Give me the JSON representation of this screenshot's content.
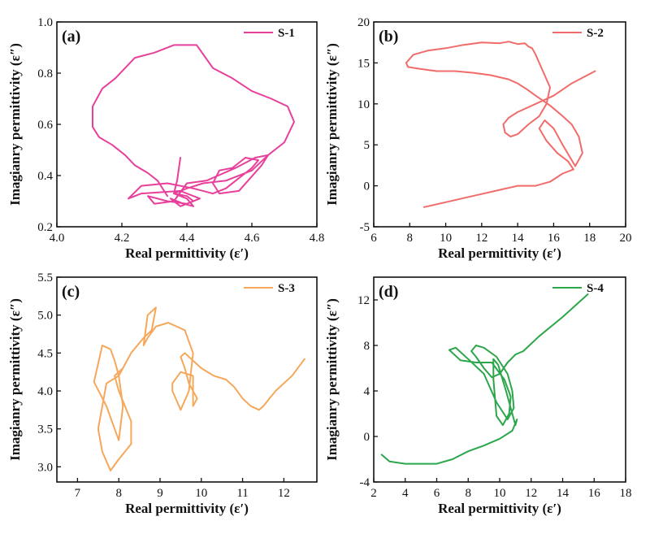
{
  "chart_data": [
    {
      "type": "line",
      "panel_label": "(a)",
      "xlabel": "Real permittivity (ε′)",
      "ylabel": "Imagianry permittivity (ε″)",
      "xlim": [
        4.0,
        4.8
      ],
      "ylim": [
        0.2,
        1.0
      ],
      "xticks": [
        4.0,
        4.2,
        4.4,
        4.6,
        4.8
      ],
      "yticks": [
        0.2,
        0.4,
        0.6,
        0.8,
        1.0
      ],
      "xtick_labels": [
        "4.0",
        "4.2",
        "4.4",
        "4.6",
        "4.8"
      ],
      "ytick_labels": [
        "0.2",
        "0.4",
        "0.6",
        "0.8",
        "1.0"
      ],
      "legend_position": "top-right",
      "grid": false,
      "series": [
        {
          "name": "S-1",
          "color": "#e8409a",
          "x": [
            4.38,
            4.37,
            4.36,
            4.4,
            4.42,
            4.36,
            4.3,
            4.28,
            4.34,
            4.4,
            4.44,
            4.38,
            4.26,
            4.22,
            4.26,
            4.34,
            4.42,
            4.48,
            4.52,
            4.56,
            4.6,
            4.62,
            4.58,
            4.54,
            4.5,
            4.48,
            4.5,
            4.56,
            4.63,
            4.65,
            4.61,
            4.55,
            4.46,
            4.4,
            4.36,
            4.39,
            4.35,
            4.38,
            4.42,
            4.4,
            4.36,
            4.4,
            4.45,
            4.52,
            4.6,
            4.65,
            4.7,
            4.73,
            4.71,
            4.66,
            4.6,
            4.54,
            4.48,
            4.43,
            4.36,
            4.3,
            4.24,
            4.18,
            4.14,
            4.11,
            4.11,
            4.13,
            4.17,
            4.21,
            4.24,
            4.28,
            4.31,
            4.33,
            4.34
          ],
          "y": [
            0.47,
            0.38,
            0.33,
            0.31,
            0.28,
            0.3,
            0.29,
            0.32,
            0.3,
            0.29,
            0.31,
            0.34,
            0.33,
            0.31,
            0.36,
            0.37,
            0.35,
            0.33,
            0.35,
            0.39,
            0.43,
            0.46,
            0.47,
            0.43,
            0.42,
            0.37,
            0.33,
            0.34,
            0.44,
            0.48,
            0.47,
            0.43,
            0.38,
            0.37,
            0.3,
            0.29,
            0.31,
            0.28,
            0.3,
            0.32,
            0.33,
            0.35,
            0.37,
            0.38,
            0.42,
            0.48,
            0.53,
            0.61,
            0.67,
            0.7,
            0.73,
            0.78,
            0.82,
            0.91,
            0.91,
            0.88,
            0.86,
            0.78,
            0.74,
            0.67,
            0.59,
            0.55,
            0.52,
            0.48,
            0.44,
            0.41,
            0.38,
            0.34,
            0.32
          ]
        }
      ]
    },
    {
      "type": "line",
      "panel_label": "(b)",
      "xlabel": "Real permittivity (ε′)",
      "ylabel": "Imagianry permittivity (ε″)",
      "xlim": [
        6,
        20
      ],
      "ylim": [
        -5,
        20
      ],
      "xticks": [
        6,
        8,
        10,
        12,
        14,
        16,
        18,
        20
      ],
      "yticks": [
        -5,
        0,
        5,
        10,
        15,
        20
      ],
      "xtick_labels": [
        "6",
        "8",
        "10",
        "12",
        "14",
        "16",
        "18",
        "20"
      ],
      "ytick_labels": [
        "-5",
        "0",
        "5",
        "10",
        "15",
        "20"
      ],
      "legend_position": "top-right",
      "grid": false,
      "series": [
        {
          "name": "S-2",
          "color": "#f26b6b",
          "x": [
            18.3,
            17.0,
            16.0,
            15.0,
            14.0,
            13.5,
            13.2,
            13.3,
            13.6,
            14.0,
            14.6,
            15.2,
            15.6,
            15.8,
            15.5,
            15.2,
            15.0,
            14.8,
            14.6,
            14.4,
            14.0,
            13.5,
            13.0,
            12.0,
            11.0,
            10.0,
            9.0,
            8.2,
            7.8,
            7.9,
            8.5,
            9.5,
            10.5,
            11.5,
            12.5,
            13.5,
            14.0,
            14.5,
            15.0,
            15.8,
            16.5,
            17.0,
            17.4,
            17.6,
            17.2,
            16.5,
            16.0,
            15.5,
            15.2,
            15.6,
            16.2,
            16.8,
            17.1,
            16.5,
            15.8,
            15.0,
            14.0,
            13.0,
            12.0,
            11.0,
            10.0,
            8.8
          ],
          "y": [
            14.0,
            12.5,
            11.0,
            10.0,
            9.0,
            8.3,
            7.5,
            6.5,
            6.0,
            6.3,
            7.5,
            8.5,
            10.0,
            12.0,
            13.5,
            15.0,
            16.0,
            16.8,
            17.0,
            17.4,
            17.3,
            17.6,
            17.4,
            17.5,
            17.2,
            16.8,
            16.5,
            16.0,
            15.0,
            14.5,
            14.3,
            14.0,
            14.0,
            13.8,
            13.5,
            13.0,
            12.5,
            11.8,
            11.0,
            9.8,
            8.5,
            7.5,
            6.0,
            4.0,
            2.4,
            5.0,
            7.0,
            8.0,
            7.0,
            5.5,
            4.0,
            3.0,
            2.0,
            1.5,
            0.5,
            0.0,
            0.0,
            -0.5,
            -1.0,
            -1.5,
            -2.0,
            -2.6
          ]
        }
      ]
    },
    {
      "type": "line",
      "panel_label": "(c)",
      "xlabel": "Real permittivity (ε′)",
      "ylabel": "Imagianry permittivity (ε″)",
      "xlim": [
        6.5,
        12.8
      ],
      "ylim": [
        2.8,
        5.5
      ],
      "xticks": [
        7,
        8,
        9,
        10,
        11,
        12
      ],
      "yticks": [
        3.0,
        3.5,
        4.0,
        4.5,
        5.0,
        5.5
      ],
      "xtick_labels": [
        "7",
        "8",
        "9",
        "10",
        "11",
        "12"
      ],
      "ytick_labels": [
        "3.0",
        "3.5",
        "4.0",
        "4.5",
        "5.0",
        "5.5"
      ],
      "legend_position": "top-right",
      "grid": false,
      "series": [
        {
          "name": "S-3",
          "color": "#f5a75a",
          "x": [
            12.5,
            12.2,
            11.8,
            11.5,
            11.4,
            11.2,
            11.0,
            10.8,
            10.6,
            10.3,
            10.0,
            9.8,
            9.6,
            9.5,
            9.6,
            9.7,
            9.9,
            9.8,
            9.8,
            9.5,
            9.3,
            9.3,
            9.5,
            9.7,
            9.8,
            9.6,
            9.2,
            8.9,
            8.7,
            8.6,
            8.7,
            8.9,
            8.8,
            8.6,
            8.3,
            8.1,
            7.9,
            8.0,
            8.3,
            8.3,
            8.0,
            7.8,
            7.6,
            7.5,
            7.6,
            7.7,
            8.0,
            7.9,
            7.8,
            7.6,
            7.4,
            7.7,
            7.9,
            8.0,
            8.1,
            8.0,
            8.2,
            8.3
          ],
          "y": [
            4.42,
            4.2,
            4.0,
            3.8,
            3.75,
            3.8,
            3.9,
            4.05,
            4.15,
            4.2,
            4.3,
            4.4,
            4.5,
            4.45,
            4.3,
            4.1,
            3.9,
            3.8,
            4.2,
            4.25,
            4.1,
            4.0,
            3.75,
            4.0,
            4.5,
            4.8,
            4.9,
            4.85,
            4.7,
            4.6,
            5.0,
            5.1,
            4.8,
            4.7,
            4.5,
            4.3,
            4.2,
            4.0,
            3.6,
            3.3,
            3.1,
            2.95,
            3.2,
            3.5,
            3.8,
            4.1,
            4.2,
            4.4,
            4.55,
            4.6,
            4.12,
            3.8,
            3.5,
            3.35,
            3.8,
            4.2,
            4.4,
            4.5
          ]
        }
      ]
    },
    {
      "type": "line",
      "panel_label": "(d)",
      "xlabel": "Real permittivity (ε′)",
      "ylabel": "Imagianry permittivity (ε″)",
      "xlim": [
        2,
        18
      ],
      "ylim": [
        -4,
        14
      ],
      "xticks": [
        2,
        4,
        6,
        8,
        10,
        12,
        14,
        16,
        18
      ],
      "yticks": [
        -4,
        0,
        4,
        8,
        12
      ],
      "xtick_labels": [
        "2",
        "4",
        "6",
        "8",
        "10",
        "12",
        "14",
        "16",
        "18"
      ],
      "ytick_labels": [
        "-4",
        "0",
        "4",
        "8",
        "12"
      ],
      "legend_position": "top-right",
      "grid": false,
      "series": [
        {
          "name": "S-4",
          "color": "#2ca64a",
          "x": [
            15.6,
            14.0,
            12.5,
            11.5,
            11.0,
            10.5,
            10.0,
            9.5,
            9.0,
            8.5,
            8.2,
            8.5,
            9.0,
            9.8,
            10.5,
            10.8,
            10.9,
            10.5,
            9.8,
            9.0,
            8.0,
            7.2,
            6.8,
            7.5,
            8.5,
            9.5,
            10.3,
            10.7,
            10.6,
            10.2,
            9.8,
            9.6,
            9.6,
            9.9,
            10.4,
            10.8,
            11.0,
            11.1,
            10.8,
            10.0,
            9.0,
            8.0,
            7.0,
            6.0,
            5.0,
            4.0,
            3.0,
            2.5
          ],
          "y": [
            12.5,
            10.5,
            8.8,
            7.5,
            7.2,
            6.5,
            5.5,
            5.2,
            6.0,
            7.0,
            7.5,
            8.0,
            7.8,
            7.0,
            5.5,
            4.0,
            2.5,
            1.5,
            3.0,
            5.5,
            6.8,
            7.8,
            7.6,
            6.7,
            6.5,
            6.5,
            5.0,
            3.5,
            2.0,
            1.0,
            1.8,
            5.0,
            6.8,
            6.3,
            4.0,
            2.0,
            1.0,
            1.5,
            0.5,
            -0.2,
            -0.8,
            -1.3,
            -2.0,
            -2.4,
            -2.4,
            -2.4,
            -2.2,
            -1.6
          ]
        }
      ]
    }
  ]
}
